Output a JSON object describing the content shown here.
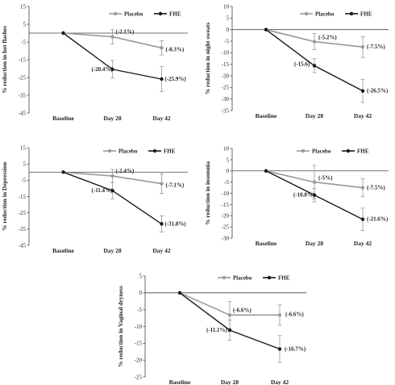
{
  "colors": {
    "placebo": "#9a9a9a",
    "fhe": "#1a1a1a",
    "error_bar": "#9a9a9a",
    "axis": "#444444"
  },
  "chart_data": [
    {
      "type": "line",
      "categories": [
        "Baseline",
        "Day 28",
        "Day 42"
      ],
      "ylabel": "% reduction in hot flashes",
      "ylim": [
        -45,
        15
      ],
      "yticks": [
        15,
        5,
        -5,
        -15,
        -25,
        -35,
        -45
      ],
      "legend": "top-right",
      "series": [
        {
          "name": "Placebo",
          "values": [
            0,
            -2.1,
            -8.3
          ],
          "errors": [
            0,
            4,
            4
          ],
          "labels": [
            "",
            "(-2.1%)",
            "(-8.3%)"
          ]
        },
        {
          "name": "FHE",
          "values": [
            0,
            -20.4,
            -25.9
          ],
          "errors": [
            0,
            5,
            7
          ],
          "labels": [
            "",
            "(-20.4%)",
            "(-25.9%)"
          ]
        }
      ]
    },
    {
      "type": "line",
      "categories": [
        "Baseline",
        "Day 28",
        "Day 42"
      ],
      "ylabel": "% reduction in night sweats",
      "ylim": [
        -35,
        10
      ],
      "yticks": [
        10,
        5,
        0,
        -5,
        -10,
        -15,
        -20,
        -25,
        -30,
        -35
      ],
      "legend": "top-right",
      "series": [
        {
          "name": "Placebo",
          "values": [
            0,
            -5.2,
            -7.5
          ],
          "errors": [
            0,
            3.5,
            4.5
          ],
          "labels": [
            "",
            "(-5.2%)",
            "(-7.5%)"
          ]
        },
        {
          "name": "FHE",
          "values": [
            0,
            -15.6,
            -26.5
          ],
          "errors": [
            0,
            3,
            5
          ],
          "labels": [
            "",
            "(-15.6)",
            "(-26.5%)"
          ]
        }
      ]
    },
    {
      "type": "line",
      "categories": [
        "Baseline",
        "Day 28",
        "Day 42"
      ],
      "ylabel": "% reduction in Depression",
      "ylim": [
        -45,
        15
      ],
      "yticks": [
        15,
        5,
        -5,
        -15,
        -25,
        -35,
        -45
      ],
      "legend": "top-right",
      "series": [
        {
          "name": "Placebo",
          "values": [
            0,
            -2.4,
            -7.1
          ],
          "errors": [
            0,
            4,
            6
          ],
          "labels": [
            "",
            "(-2.4%)",
            "(-7.1%)"
          ]
        },
        {
          "name": "FHE",
          "values": [
            0,
            -11.4,
            -31.8
          ],
          "errors": [
            0,
            5,
            5
          ],
          "labels": [
            "",
            "(-11.4%)",
            "(-31.8%)"
          ]
        }
      ]
    },
    {
      "type": "line",
      "categories": [
        "Baseline",
        "Day 28",
        "Day 42"
      ],
      "ylabel": "% reduction in insomnia",
      "ylim": [
        -30,
        10
      ],
      "yticks": [
        10,
        5,
        0,
        -5,
        -10,
        -15,
        -20,
        -25,
        -30
      ],
      "legend": "top-right",
      "series": [
        {
          "name": "Placebo",
          "values": [
            0,
            -5,
            -7.5
          ],
          "errors": [
            0,
            7.5,
            4
          ],
          "labels": [
            "",
            "(-5%)",
            "(-7.5%)"
          ]
        },
        {
          "name": "FHE",
          "values": [
            0,
            -10.8,
            -21.6
          ],
          "errors": [
            0,
            3,
            5
          ],
          "labels": [
            "",
            "(-10.8%)",
            "(-21.6%)"
          ]
        }
      ]
    },
    {
      "type": "line",
      "categories": [
        "Baseline",
        "Day 28",
        "Day 42"
      ],
      "ylabel": "% reduction in Vaginal dryness",
      "ylim": [
        -25,
        5
      ],
      "yticks": [
        5,
        0,
        -5,
        -10,
        -15,
        -20,
        -25
      ],
      "legend": "top-right",
      "series": [
        {
          "name": "Placebo",
          "values": [
            0,
            -6.6,
            -6.6
          ],
          "errors": [
            0,
            4,
            3
          ],
          "labels": [
            "",
            "(-6.6%)",
            "(-6.6%)"
          ]
        },
        {
          "name": "FHE",
          "values": [
            0,
            -11.1,
            -16.7
          ],
          "errors": [
            0,
            3,
            4
          ],
          "labels": [
            "",
            "(-11.1%)",
            "(-16.7%)"
          ]
        }
      ]
    }
  ]
}
